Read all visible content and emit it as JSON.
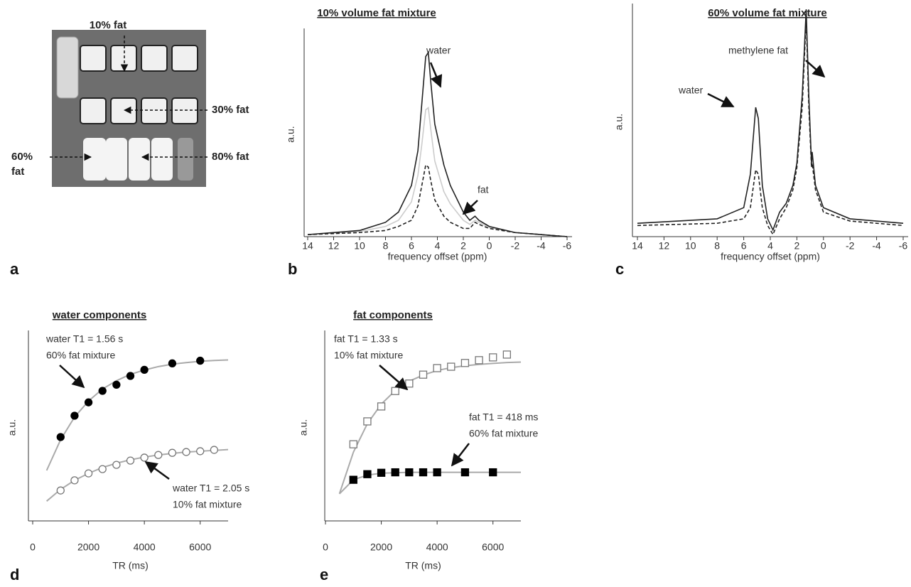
{
  "photo_panel": {
    "panel_label": "a",
    "labels": [
      "10% fat",
      "30% fat",
      "60%",
      "fat",
      "80% fat"
    ]
  },
  "chart_data": [
    {
      "type": "line",
      "panel_label": "b",
      "title": "10% volume fat mixture",
      "xlabel": "frequency offset (ppm)",
      "ylabel": "a.u.",
      "xlim": [
        14,
        -6
      ],
      "xticks": [
        14,
        12,
        10,
        8,
        6,
        4,
        2,
        0,
        -2,
        -4,
        -6
      ],
      "ylim": [
        0,
        1
      ],
      "x": [
        14,
        10,
        8,
        7,
        6,
        5.5,
        5.2,
        4.9,
        4.7,
        4.5,
        4.2,
        3.5,
        3,
        2,
        1.5,
        1.1,
        0.8,
        0,
        -2,
        -6
      ],
      "series": [
        {
          "color": "#cccccc",
          "style": "solid",
          "values": [
            0.01,
            0.025,
            0.05,
            0.08,
            0.17,
            0.3,
            0.45,
            0.62,
            0.63,
            0.52,
            0.37,
            0.22,
            0.16,
            0.08,
            0.06,
            0.08,
            0.07,
            0.045,
            0.02,
            0.0
          ]
        },
        {
          "color": "#222222",
          "style": "dashed",
          "values": [
            0.01,
            0.02,
            0.03,
            0.05,
            0.08,
            0.15,
            0.25,
            0.35,
            0.34,
            0.27,
            0.18,
            0.1,
            0.07,
            0.04,
            0.04,
            0.07,
            0.06,
            0.04,
            0.02,
            0.0
          ]
        },
        {
          "color": "#222222",
          "style": "solid",
          "values": [
            0.01,
            0.03,
            0.07,
            0.12,
            0.25,
            0.42,
            0.65,
            0.88,
            0.9,
            0.75,
            0.55,
            0.35,
            0.25,
            0.12,
            0.08,
            0.1,
            0.08,
            0.05,
            0.02,
            0.0
          ]
        }
      ],
      "annotations": [
        [
          "water"
        ],
        [
          "fat"
        ]
      ]
    },
    {
      "type": "line",
      "panel_label": "c",
      "title": "60% volume fat mixture",
      "xlabel": "frequency offset (ppm)",
      "ylabel": "a.u.",
      "xlim": [
        14,
        -6
      ],
      "xticks": [
        14,
        12,
        10,
        8,
        6,
        4,
        2,
        0,
        -2,
        -4,
        -6
      ],
      "ylim": [
        -0.03,
        1
      ],
      "x": [
        14,
        8,
        6,
        5.5,
        5.1,
        4.9,
        4.6,
        4.2,
        3.8,
        3.3,
        2.8,
        2.3,
        2,
        1.6,
        1.3,
        1.1,
        0.9,
        0.85,
        0.6,
        0,
        -2,
        -6
      ],
      "series": [
        {
          "color": "#222222",
          "style": "dashed",
          "values": [
            0.02,
            0.03,
            0.05,
            0.1,
            0.27,
            0.25,
            0.1,
            0.02,
            -0.02,
            0.05,
            0.1,
            0.18,
            0.28,
            0.55,
            0.95,
            0.55,
            0.28,
            0.3,
            0.18,
            0.08,
            0.04,
            0.02
          ]
        },
        {
          "color": "#222222",
          "style": "solid",
          "values": [
            0.03,
            0.05,
            0.1,
            0.25,
            0.55,
            0.5,
            0.2,
            0.05,
            0.0,
            0.08,
            0.12,
            0.2,
            0.3,
            0.6,
            0.99,
            0.6,
            0.3,
            0.35,
            0.2,
            0.1,
            0.05,
            0.03
          ]
        }
      ],
      "annotations": [
        [
          "methylene fat"
        ],
        [
          "water"
        ]
      ]
    },
    {
      "type": "scatter",
      "panel_label": "d",
      "title": "water components",
      "xlabel": "TR (ms)",
      "ylabel": "a.u.",
      "xlim": [
        0,
        7000
      ],
      "xticks": [
        0,
        2000,
        4000,
        6000
      ],
      "ylim": [
        0,
        7
      ],
      "series": [
        {
          "mode": "line",
          "color": "#aaaaaa",
          "x": [
            500,
            1000,
            1500,
            2000,
            2500,
            3000,
            3500,
            4000,
            4500,
            5000,
            5500,
            6000,
            6500,
            7000
          ],
          "values": [
            1.89,
            3.04,
            3.89,
            4.49,
            4.94,
            5.25,
            5.49,
            5.65,
            5.78,
            5.87,
            5.93,
            5.98,
            6.01,
            6.03
          ]
        },
        {
          "mode": "line",
          "color": "#aaaaaa",
          "x": [
            500,
            1000,
            1500,
            2000,
            2500,
            3000,
            3500,
            4000,
            4500,
            5000,
            5500,
            6000,
            6500,
            7000
          ],
          "values": [
            0.74,
            1.18,
            1.52,
            1.78,
            2.0,
            2.16,
            2.29,
            2.39,
            2.47,
            2.53,
            2.58,
            2.61,
            2.64,
            2.67
          ]
        },
        {
          "mode": "marker",
          "marker": "circle",
          "filled": true,
          "color": "#000000",
          "x": [
            1000,
            1500,
            2000,
            2500,
            3000,
            3500,
            4000,
            5000,
            6000
          ],
          "values": [
            3.14,
            3.94,
            4.44,
            4.87,
            5.1,
            5.43,
            5.66,
            5.9,
            6.0
          ]
        },
        {
          "mode": "marker",
          "marker": "circle",
          "filled": false,
          "color": "#777777",
          "x": [
            1000,
            1500,
            2000,
            2500,
            3000,
            3500,
            4000,
            4500,
            5000,
            5500,
            6000,
            6500
          ],
          "values": [
            1.14,
            1.52,
            1.78,
            1.94,
            2.1,
            2.26,
            2.37,
            2.47,
            2.55,
            2.58,
            2.61,
            2.66
          ]
        }
      ],
      "annotations": [
        [
          "water T1 = 1.56 s",
          "60% fat mixture"
        ],
        [
          "water T1 = 2.05 s",
          "10% fat mixture"
        ]
      ]
    },
    {
      "type": "scatter",
      "panel_label": "e",
      "title": "fat components",
      "xlabel": "TR (ms)",
      "ylabel": "a.u.",
      "xlim": [
        0,
        7000
      ],
      "xticks": [
        0,
        2000,
        4000,
        6000
      ],
      "ylim": [
        0,
        4
      ],
      "series": [
        {
          "mode": "line",
          "color": "#aaaaaa",
          "x": [
            500,
            1000,
            1500,
            2000,
            2500,
            3000,
            3500,
            4000,
            4500,
            5000,
            5500,
            6000,
            6500,
            7000
          ],
          "values": [
            0.58,
            1.47,
            2.08,
            2.5,
            2.79,
            2.99,
            3.12,
            3.22,
            3.28,
            3.32,
            3.35,
            3.37,
            3.39,
            3.4
          ]
        },
        {
          "mode": "line",
          "color": "#aaaaaa",
          "x": [
            500,
            1000,
            1500,
            2000,
            2500,
            3000,
            3500,
            4000,
            4500,
            5000,
            5500,
            6000,
            6500,
            7000
          ],
          "values": [
            0.58,
            0.88,
            0.98,
            1.02,
            1.03,
            1.04,
            1.04,
            1.04,
            1.04,
            1.04,
            1.04,
            1.04,
            1.04,
            1.04
          ]
        },
        {
          "mode": "marker",
          "marker": "square",
          "filled": false,
          "color": "#777777",
          "x": [
            1000,
            1500,
            2000,
            2500,
            3000,
            3500,
            4000,
            4500,
            5000,
            5500,
            6000,
            6500
          ],
          "values": [
            1.64,
            2.13,
            2.45,
            2.78,
            2.94,
            3.13,
            3.27,
            3.3,
            3.38,
            3.44,
            3.5,
            3.56
          ]
        },
        {
          "mode": "marker",
          "marker": "square",
          "filled": true,
          "color": "#000000",
          "x": [
            1000,
            1500,
            2000,
            2500,
            3000,
            3500,
            4000,
            5000,
            6000
          ],
          "values": [
            0.88,
            1.0,
            1.03,
            1.04,
            1.04,
            1.04,
            1.04,
            1.04,
            1.04
          ]
        }
      ],
      "annotations": [
        [
          "fat T1 = 1.33 s",
          "10% fat mixture"
        ],
        [
          "fat T1 = 418 ms",
          "60% fat mixture"
        ]
      ]
    }
  ]
}
